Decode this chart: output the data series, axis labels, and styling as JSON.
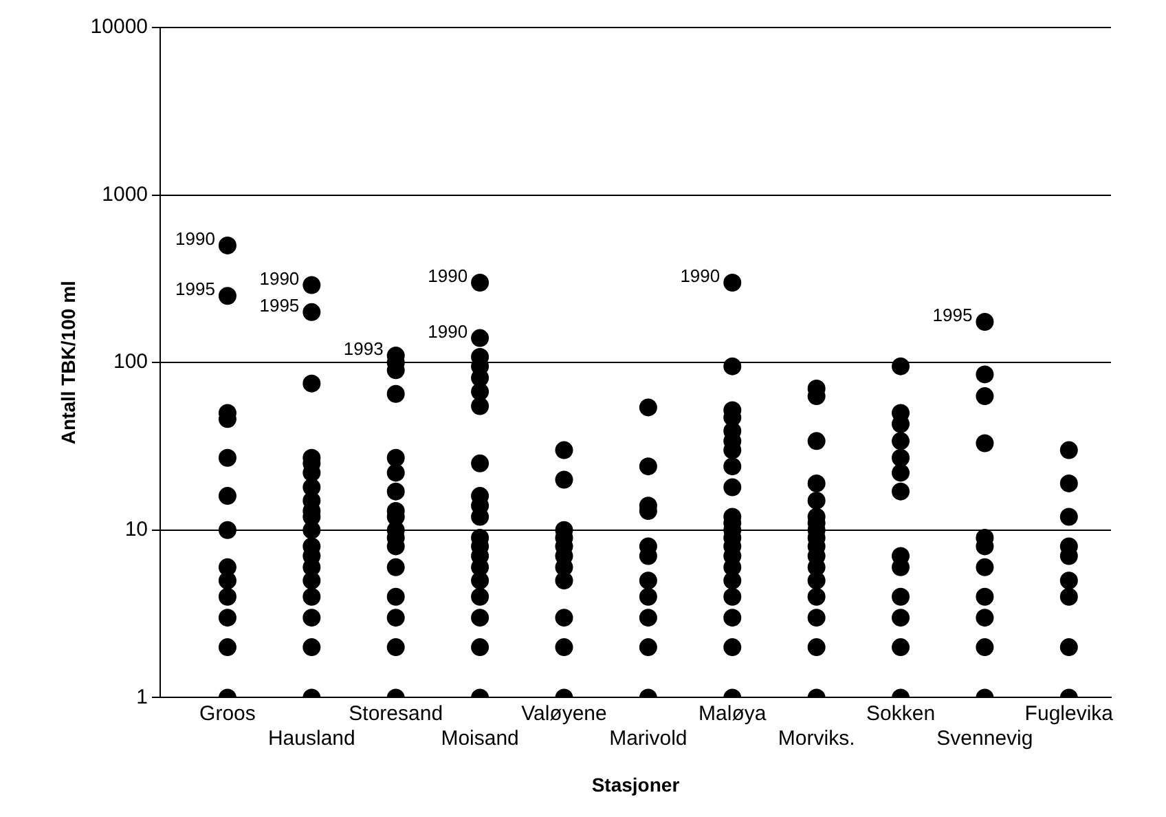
{
  "chart_data": {
    "type": "scatter",
    "xlabel": "Stasjoner",
    "ylabel": "Antall TBK/100 ml",
    "categories": [
      "Groos",
      "Hausland",
      "Storesand",
      "Moisand",
      "Valøyene",
      "Marivold",
      "Maløya",
      "Morviks.",
      "Sokken",
      "Svennevig",
      "Fuglevika"
    ],
    "series": [
      {
        "color": "#000000",
        "x": [
          "Groos",
          "Groos",
          "Groos",
          "Groos",
          "Groos",
          "Groos",
          "Groos",
          "Groos",
          "Groos",
          "Groos",
          "Groos",
          "Groos",
          "Groos",
          "Hausland",
          "Hausland",
          "Hausland",
          "Hausland",
          "Hausland",
          "Hausland",
          "Hausland",
          "Hausland",
          "Hausland",
          "Hausland",
          "Hausland",
          "Hausland",
          "Hausland",
          "Hausland",
          "Hausland",
          "Hausland",
          "Hausland",
          "Hausland",
          "Hausland",
          "Storesand",
          "Storesand",
          "Storesand",
          "Storesand",
          "Storesand",
          "Storesand",
          "Storesand",
          "Storesand",
          "Storesand",
          "Storesand",
          "Storesand",
          "Storesand",
          "Storesand",
          "Storesand",
          "Storesand",
          "Storesand",
          "Storesand",
          "Moisand",
          "Moisand",
          "Moisand",
          "Moisand",
          "Moisand",
          "Moisand",
          "Moisand",
          "Moisand",
          "Moisand",
          "Moisand",
          "Moisand",
          "Moisand",
          "Moisand",
          "Moisand",
          "Moisand",
          "Moisand",
          "Moisand",
          "Moisand",
          "Moisand",
          "Moisand",
          "Valøyene",
          "Valøyene",
          "Valøyene",
          "Valøyene",
          "Valøyene",
          "Valøyene",
          "Valøyene",
          "Valøyene",
          "Valøyene",
          "Valøyene",
          "Valøyene",
          "Marivold",
          "Marivold",
          "Marivold",
          "Marivold",
          "Marivold",
          "Marivold",
          "Marivold",
          "Marivold",
          "Marivold",
          "Marivold",
          "Marivold",
          "Maløya",
          "Maløya",
          "Maløya",
          "Maløya",
          "Maløya",
          "Maløya",
          "Maløya",
          "Maløya",
          "Maløya",
          "Maløya",
          "Maløya",
          "Maløya",
          "Maløya",
          "Maløya",
          "Maløya",
          "Maløya",
          "Maløya",
          "Maløya",
          "Maløya",
          "Maløya",
          "Maløya",
          "Morviks.",
          "Morviks.",
          "Morviks.",
          "Morviks.",
          "Morviks.",
          "Morviks.",
          "Morviks.",
          "Morviks.",
          "Morviks.",
          "Morviks.",
          "Morviks.",
          "Morviks.",
          "Morviks.",
          "Morviks.",
          "Morviks.",
          "Morviks.",
          "Morviks.",
          "Sokken",
          "Sokken",
          "Sokken",
          "Sokken",
          "Sokken",
          "Sokken",
          "Sokken",
          "Sokken",
          "Sokken",
          "Sokken",
          "Sokken",
          "Sokken",
          "Sokken",
          "Svennevig",
          "Svennevig",
          "Svennevig",
          "Svennevig",
          "Svennevig",
          "Svennevig",
          "Svennevig",
          "Svennevig",
          "Svennevig",
          "Svennevig",
          "Svennevig",
          "Fuglevika",
          "Fuglevika",
          "Fuglevika",
          "Fuglevika",
          "Fuglevika",
          "Fuglevika",
          "Fuglevika",
          "Fuglevika",
          "Fuglevika"
        ],
        "values": [
          500,
          250,
          50,
          46,
          27,
          16,
          10,
          6,
          5,
          4,
          3,
          2,
          1,
          290,
          200,
          75,
          27,
          25,
          22,
          18,
          15,
          13,
          12,
          10,
          8,
          7,
          6,
          5,
          4,
          3,
          2,
          1,
          110,
          100,
          90,
          65,
          27,
          22,
          17,
          13,
          12,
          10,
          9,
          8,
          6,
          4,
          3,
          2,
          1,
          300,
          140,
          108,
          95,
          81,
          67,
          55,
          25,
          16,
          14,
          12,
          9,
          8,
          7,
          6,
          5,
          4,
          3,
          2,
          1,
          30,
          20,
          10,
          9,
          8,
          7,
          6,
          5,
          3,
          2,
          1,
          54,
          24,
          14,
          13,
          8,
          7,
          5,
          4,
          3,
          2,
          1,
          300,
          95,
          52,
          47,
          39,
          34,
          30,
          24,
          18,
          12,
          11,
          10,
          9,
          8,
          7,
          6,
          5,
          4,
          3,
          2,
          1,
          70,
          63,
          34,
          19,
          15,
          12,
          11,
          10,
          9,
          8,
          7,
          6,
          5,
          4,
          3,
          2,
          1,
          95,
          50,
          43,
          34,
          27,
          22,
          17,
          7,
          6,
          4,
          3,
          2,
          1,
          175,
          85,
          63,
          33,
          9,
          8,
          6,
          4,
          3,
          2,
          1,
          30,
          19,
          12,
          8,
          7,
          5,
          4,
          2,
          1
        ]
      }
    ],
    "annotations": [
      {
        "text": "1990",
        "x": "Groos",
        "y": 500
      },
      {
        "text": "1995",
        "x": "Groos",
        "y": 250
      },
      {
        "text": "1990",
        "x": "Hausland",
        "y": 290
      },
      {
        "text": "1995",
        "x": "Hausland",
        "y": 200
      },
      {
        "text": "1993",
        "x": "Storesand",
        "y": 110
      },
      {
        "text": "1990",
        "x": "Moisand",
        "y": 300
      },
      {
        "text": "1990",
        "x": "Moisand",
        "y": 140
      },
      {
        "text": "1990",
        "x": "Maløya",
        "y": 300
      },
      {
        "text": "1995",
        "x": "Svennevig",
        "y": 175
      }
    ],
    "log": "y",
    "ylim": [
      1,
      10000
    ],
    "yticks": [
      1,
      10,
      100,
      1000,
      10000
    ],
    "grid": "y",
    "marker": "circle",
    "legend": false
  }
}
